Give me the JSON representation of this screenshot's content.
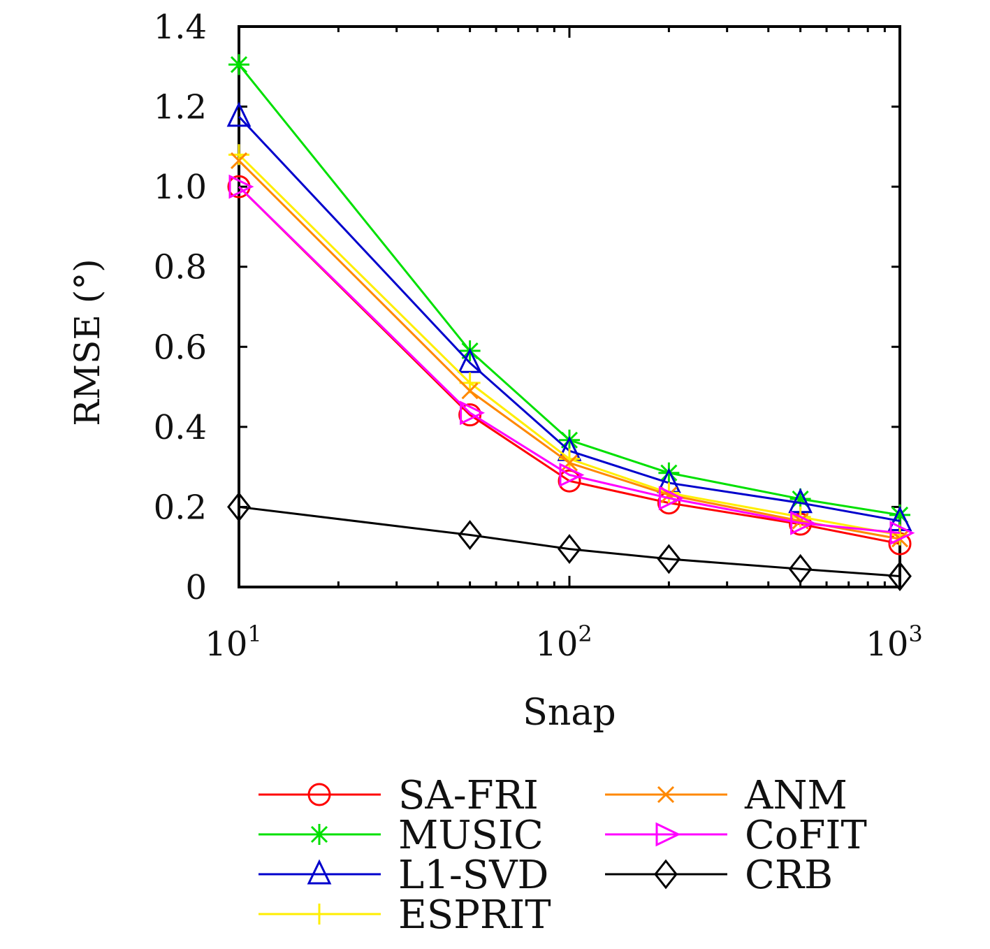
{
  "chart_data": {
    "type": "line",
    "title": "",
    "xlabel": "Snap",
    "ylabel": "RMSE (°)",
    "xscale": "log",
    "xlim": [
      10,
      1000
    ],
    "ylim": [
      0,
      1.4
    ],
    "x": [
      10,
      50,
      100,
      200,
      500,
      1000
    ],
    "xticks": [
      {
        "base": "10",
        "exp": "1",
        "value": 10
      },
      {
        "base": "10",
        "exp": "2",
        "value": 100
      },
      {
        "base": "10",
        "exp": "3",
        "value": 1000
      }
    ],
    "yticks": [
      "0",
      "0.2",
      "0.4",
      "0.6",
      "0.8",
      "1.0",
      "1.2",
      "1.4"
    ],
    "grid": false,
    "legend_position": "bottom",
    "series": [
      {
        "name": "SA-FRI",
        "color": "#ff0000",
        "marker": "circle",
        "values": [
          1.0,
          0.43,
          0.265,
          0.21,
          0.157,
          0.108
        ]
      },
      {
        "name": "MUSIC",
        "color": "#00e000",
        "marker": "asterisk",
        "values": [
          1.305,
          0.59,
          0.367,
          0.285,
          0.22,
          0.18
        ]
      },
      {
        "name": "L1-SVD",
        "color": "#0000cc",
        "marker": "triangle",
        "values": [
          1.175,
          0.56,
          0.34,
          0.26,
          0.21,
          0.165
        ]
      },
      {
        "name": "ESPRIT",
        "color": "#ffee00",
        "marker": "plus",
        "values": [
          1.08,
          0.51,
          0.32,
          0.235,
          0.175,
          0.13
        ]
      },
      {
        "name": "ANM",
        "color": "#ff8800",
        "marker": "x",
        "values": [
          1.065,
          0.49,
          0.31,
          0.23,
          0.165,
          0.12
        ]
      },
      {
        "name": "CoFIT",
        "color": "#ff00ff",
        "marker": "right-triangle",
        "values": [
          1.0,
          0.435,
          0.28,
          0.222,
          0.16,
          0.135
        ]
      },
      {
        "name": "CRB",
        "color": "#000000",
        "marker": "diamond",
        "values": [
          0.2,
          0.13,
          0.095,
          0.07,
          0.045,
          0.027
        ]
      }
    ]
  }
}
